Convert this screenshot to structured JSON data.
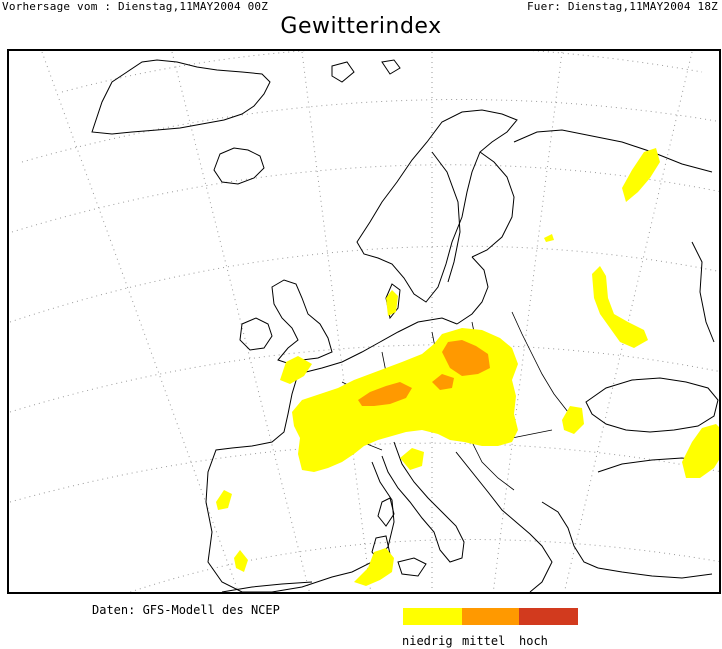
{
  "header": {
    "left": "Vorhersage vom : Dienstag,11MAY2004 00Z",
    "right": "Fuer: Dienstag,11MAY2004 18Z"
  },
  "title": "Gewitterindex",
  "footer": {
    "source": "Daten: GFS-Modell des NCEP"
  },
  "legend": [
    {
      "label": "niedrig",
      "color": "#ffff00"
    },
    {
      "label": "mittel",
      "color": "#ff9900"
    },
    {
      "label": "hoch",
      "color": "#d23a1e"
    }
  ]
}
